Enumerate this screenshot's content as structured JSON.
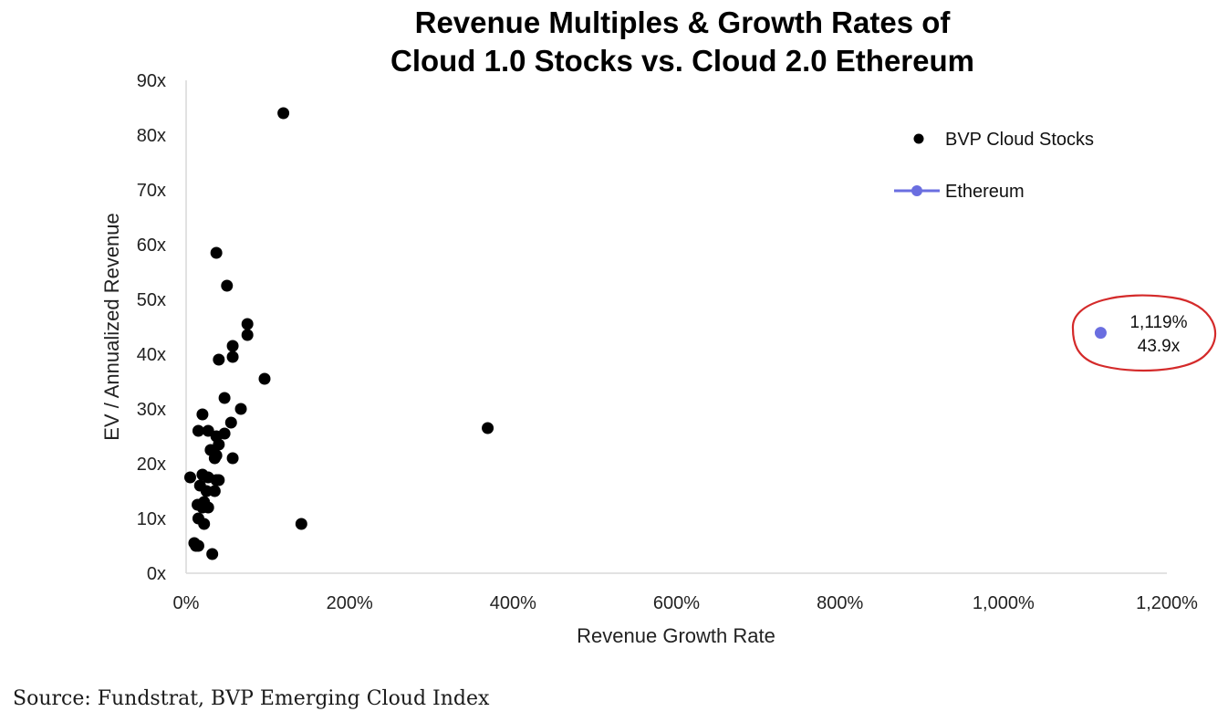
{
  "chart_data": {
    "type": "scatter",
    "title_lines": [
      "Revenue Multiples & Growth Rates of",
      "Cloud 1.0 Stocks vs. Cloud 2.0 Ethereum"
    ],
    "xlabel": "Revenue Growth Rate",
    "ylabel": "EV / Annualized Revenue",
    "xlim": [
      0,
      1200
    ],
    "ylim": [
      0,
      90
    ],
    "x_ticks": [
      "0%",
      "200%",
      "400%",
      "600%",
      "800%",
      "1,000%",
      "1,200%"
    ],
    "y_ticks": [
      "0x",
      "10x",
      "20x",
      "30x",
      "40x",
      "50x",
      "60x",
      "70x",
      "80x",
      "90x"
    ],
    "x_tick_values": [
      0,
      200,
      400,
      600,
      800,
      1000,
      1200
    ],
    "y_tick_values": [
      0,
      10,
      20,
      30,
      40,
      50,
      60,
      70,
      80,
      90
    ],
    "grid": false,
    "legend_position": "top-right",
    "series": [
      {
        "name": "BVP Cloud Stocks",
        "color": "#000000",
        "x": [
          119,
          37,
          50,
          75,
          75,
          57,
          57,
          40,
          96,
          47,
          67,
          20,
          55,
          15,
          27,
          37,
          40,
          47,
          30,
          37,
          35,
          57,
          5,
          20,
          27,
          37,
          40,
          17,
          25,
          35,
          22,
          14,
          20,
          27,
          15,
          22,
          10,
          12,
          15,
          32,
          141,
          369
        ],
        "y": [
          84,
          58.5,
          52.5,
          45.5,
          43.5,
          41.5,
          39.5,
          39,
          35.5,
          32,
          30,
          29,
          27.5,
          26,
          26,
          25,
          23.5,
          25.5,
          22.5,
          21.5,
          21,
          21,
          17.5,
          18,
          17.5,
          17,
          17,
          16,
          15,
          15,
          13,
          12.5,
          12,
          12,
          10,
          9,
          5.5,
          5,
          5,
          3.5,
          9,
          26.5
        ]
      },
      {
        "name": "Ethereum",
        "color": "#6a6ee0",
        "x": [
          1119
        ],
        "y": [
          43.9
        ]
      }
    ],
    "annotation": {
      "line1": "1,119%",
      "line2": "43.9x",
      "circle_color": "#d42a2a"
    }
  },
  "source": "Source: Fundstrat, BVP Emerging Cloud Index"
}
